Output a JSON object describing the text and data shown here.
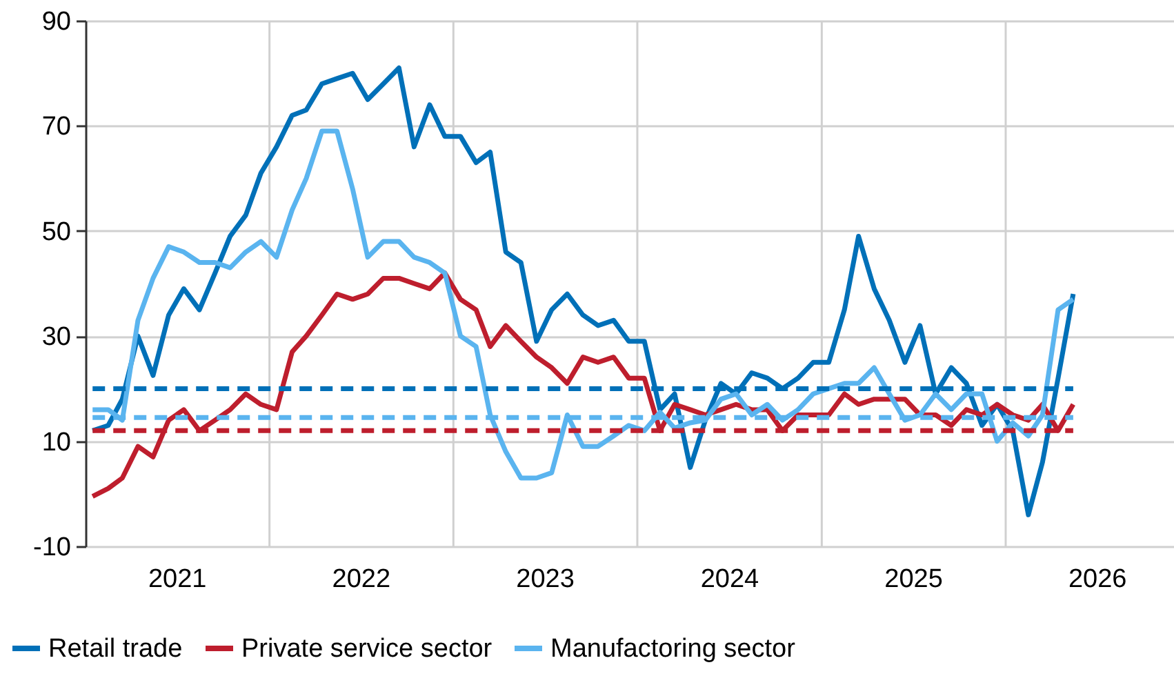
{
  "chart_data": {
    "type": "line",
    "x": [
      "2021-01-15",
      "2021-02-15",
      "2021-03-15",
      "2021-04-15",
      "2021-05-15",
      "2021-06-15",
      "2021-07-15",
      "2021-08-15",
      "2021-09-15",
      "2021-10-15",
      "2021-11-15",
      "2021-12-15",
      "2022-01-15",
      "2022-02-15",
      "2022-03-15",
      "2022-04-15",
      "2022-05-15",
      "2022-06-15",
      "2022-07-15",
      "2022-08-15",
      "2022-09-15",
      "2022-10-15",
      "2022-11-15",
      "2022-12-15",
      "2023-01-15",
      "2023-02-15",
      "2023-03-15",
      "2023-04-15",
      "2023-05-15",
      "2023-06-15",
      "2023-07-15",
      "2023-08-15",
      "2023-09-15",
      "2023-10-15",
      "2023-11-15",
      "2023-12-15",
      "2024-01-15",
      "2024-02-15",
      "2024-03-15",
      "2024-04-15",
      "2024-05-15",
      "2024-06-15",
      "2024-07-15",
      "2024-08-15",
      "2024-09-15",
      "2024-10-15",
      "2024-11-15",
      "2024-12-15",
      "2025-01-15",
      "2025-02-15",
      "2025-03-15",
      "2025-04-15",
      "2025-05-15",
      "2025-06-15",
      "2025-07-15",
      "2025-08-15",
      "2025-09-15",
      "2025-10-15",
      "2025-11-15",
      "2025-12-15",
      "2026-01-15",
      "2026-02-15",
      "2026-03-15",
      "2026-04-15",
      "2026-05-15"
    ],
    "series": [
      {
        "name": "Retail trade",
        "color": "#0070b8",
        "values": [
          12,
          13,
          18,
          30,
          22.5,
          34,
          39,
          35,
          42,
          49,
          53,
          61,
          66,
          72,
          73,
          78,
          79,
          80,
          75,
          78,
          81,
          66,
          74,
          68,
          68,
          63,
          65,
          46,
          44,
          29,
          35,
          38,
          34,
          32,
          33,
          29,
          29,
          16,
          19,
          5,
          14,
          21,
          19,
          23,
          22,
          20,
          22,
          25,
          25,
          35,
          49,
          39,
          33,
          25,
          32,
          19,
          24,
          21,
          13,
          17,
          12,
          -4,
          6,
          22,
          38
        ]
      },
      {
        "name": "Private service sector",
        "color": "#be1e2d",
        "values": [
          -0.5,
          1,
          3,
          9,
          7,
          14,
          16,
          12,
          14,
          16,
          19,
          17,
          16,
          27,
          30,
          34,
          38,
          37,
          38,
          41,
          41,
          40,
          39,
          42,
          37,
          35,
          28,
          32,
          29,
          26,
          24,
          21,
          26,
          25,
          26,
          22,
          22,
          12,
          17,
          16,
          15,
          16,
          17,
          16,
          16,
          12,
          15,
          15,
          15,
          19,
          17,
          18,
          18,
          18,
          15,
          15,
          13,
          16,
          15,
          17,
          15,
          14,
          17,
          12,
          17
        ]
      },
      {
        "name": "Manufactoring sector",
        "color": "#5ab4ef",
        "values": [
          16,
          16,
          14,
          33,
          41,
          47,
          46,
          44,
          44,
          43,
          46,
          48,
          45,
          54,
          60,
          69,
          69,
          58,
          45,
          48,
          48,
          45,
          44,
          42,
          30,
          28,
          15,
          8,
          3,
          3,
          4,
          15,
          9,
          9,
          11,
          13,
          12,
          15.5,
          12.5,
          13.5,
          14,
          18,
          19,
          15,
          17,
          14,
          16,
          19,
          20,
          21,
          21,
          24,
          19,
          14,
          15,
          19,
          16,
          19,
          19,
          10,
          13.5,
          11,
          15,
          35,
          37
        ]
      }
    ],
    "xlim": [
      "2021-01-01",
      "2026-12-01"
    ],
    "xticks": [
      {
        "value": "2021-07-01",
        "label": "2021"
      },
      {
        "value": "2022-07-01",
        "label": "2022"
      },
      {
        "value": "2023-07-01",
        "label": "2023"
      },
      {
        "value": "2024-07-01",
        "label": "2024"
      },
      {
        "value": "2025-07-01",
        "label": "2025"
      },
      {
        "value": "2026-07-01",
        "label": "2026"
      },
      {
        "value": "2022-01-01",
        "label": null
      },
      {
        "value": "2023-01-01",
        "label": null
      },
      {
        "value": "2024-01-01",
        "label": null
      },
      {
        "value": "2025-01-01",
        "label": null
      },
      {
        "value": "2026-01-01",
        "label": null
      }
    ],
    "ylim": [
      -10,
      90
    ],
    "yticks": [
      -10,
      10,
      30,
      50,
      70,
      90
    ],
    "ref_lines": [
      {
        "axis": "y",
        "value": 20,
        "color": "#0070b8",
        "line_style": "dashed"
      },
      {
        "axis": "y",
        "value": 14.5,
        "color": "#5ab4ef",
        "line_style": "dashed"
      },
      {
        "axis": "y",
        "value": 12,
        "color": "#be1e2d",
        "line_style": "dashed"
      }
    ],
    "grid": true,
    "legend": "bottom",
    "line_style": "solid"
  }
}
